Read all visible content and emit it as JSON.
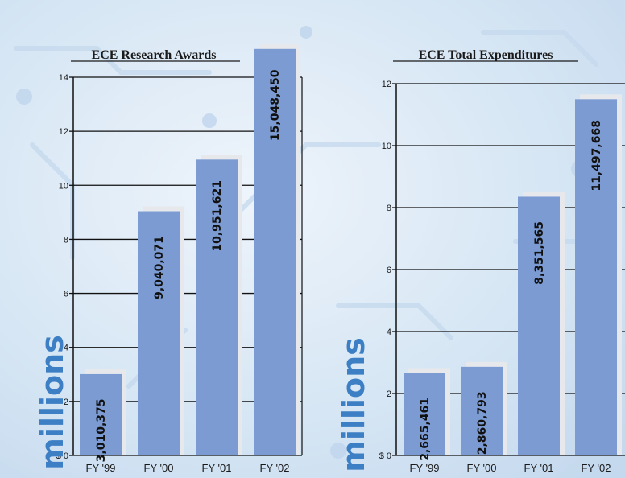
{
  "chart_data": [
    {
      "type": "bar",
      "title": "ECE Research Awards",
      "ylabel": "millions",
      "categories": [
        "FY '99",
        "FY '00",
        "FY '01",
        "FY '02"
      ],
      "values": [
        3010375,
        9040071,
        10951621,
        15048450
      ],
      "value_labels": [
        "3,010,375",
        "9,040,071",
        "10,951,621",
        "15,048,450"
      ],
      "ylim": [
        0,
        14
      ],
      "yticks": [
        0,
        2,
        4,
        6,
        8,
        10,
        12,
        14
      ],
      "ytick_labels": [
        "$ 0",
        "2",
        "4",
        "6",
        "8",
        "10",
        "12",
        "14"
      ],
      "grid": true,
      "bar_color": "#7b9bd2"
    },
    {
      "type": "bar",
      "title": "ECE Total Expenditures",
      "ylabel": "millions",
      "categories": [
        "FY '99",
        "FY '00",
        "FY '01",
        "FY '02"
      ],
      "values": [
        2665461,
        2860793,
        8351565,
        11497668
      ],
      "value_labels": [
        "2,665,461",
        "2,860,793",
        "8,351,565",
        "11,497,668"
      ],
      "ylim": [
        0,
        12
      ],
      "yticks": [
        0,
        2,
        4,
        6,
        8,
        10,
        12
      ],
      "ytick_labels": [
        "$ 0",
        "2",
        "4",
        "6",
        "8",
        "10",
        "12"
      ],
      "grid": true,
      "bar_color": "#7b9bd2"
    }
  ]
}
